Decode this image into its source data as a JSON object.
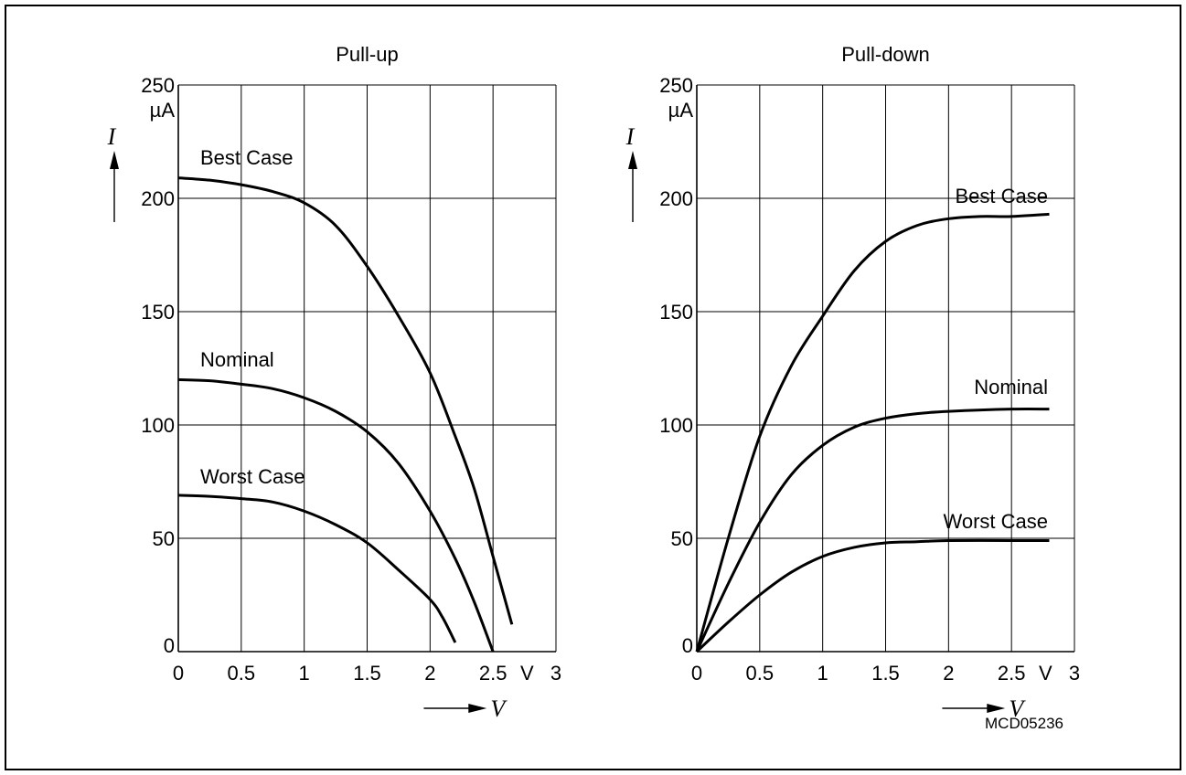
{
  "figure_id": "MCD05236",
  "chart_data": [
    {
      "type": "line",
      "title": "Pull-up",
      "xlabel": "V",
      "ylabel": "I",
      "y_unit": "µA",
      "x_unit": "V",
      "xlim": [
        0,
        3
      ],
      "ylim": [
        0,
        250
      ],
      "x_ticks": [
        "0",
        "0.5",
        "1",
        "1.5",
        "2",
        "2.5",
        "3"
      ],
      "y_ticks": [
        "0",
        "50",
        "100",
        "150",
        "200",
        "250"
      ],
      "grid": true,
      "series": [
        {
          "name": "Best Case",
          "x": [
            0,
            0.25,
            0.5,
            0.75,
            1.0,
            1.25,
            1.5,
            1.75,
            2.0,
            2.2,
            2.35,
            2.5,
            2.65
          ],
          "y": [
            209,
            208,
            206,
            203,
            198,
            188,
            170,
            148,
            123,
            95,
            72,
            42,
            12
          ]
        },
        {
          "name": "Nominal",
          "x": [
            0,
            0.25,
            0.5,
            0.75,
            1.0,
            1.25,
            1.5,
            1.75,
            2.0,
            2.2,
            2.35,
            2.5
          ],
          "y": [
            120,
            119.5,
            118,
            116,
            112,
            106,
            97,
            83,
            62,
            41,
            22,
            0
          ]
        },
        {
          "name": "Worst Case",
          "x": [
            0,
            0.25,
            0.5,
            0.75,
            1.0,
            1.25,
            1.5,
            1.75,
            2.0,
            2.1,
            2.2
          ],
          "y": [
            69,
            68.5,
            67.5,
            66,
            62,
            56,
            48,
            36,
            23,
            15,
            4
          ]
        }
      ]
    },
    {
      "type": "line",
      "title": "Pull-down",
      "xlabel": "V",
      "ylabel": "I",
      "y_unit": "µA",
      "x_unit": "V",
      "xlim": [
        0,
        3
      ],
      "ylim": [
        0,
        250
      ],
      "x_ticks": [
        "0",
        "0.5",
        "1",
        "1.5",
        "2",
        "2.5",
        "3"
      ],
      "y_ticks": [
        "0",
        "50",
        "100",
        "150",
        "200",
        "250"
      ],
      "grid": true,
      "series": [
        {
          "name": "Best Case",
          "x": [
            0,
            0.25,
            0.5,
            0.75,
            1.0,
            1.25,
            1.5,
            1.75,
            2.0,
            2.25,
            2.5,
            2.8
          ],
          "y": [
            0,
            50,
            95,
            126,
            148,
            168,
            181,
            188,
            191,
            192,
            192,
            193
          ]
        },
        {
          "name": "Nominal",
          "x": [
            0,
            0.25,
            0.5,
            0.75,
            1.0,
            1.25,
            1.5,
            1.75,
            2.0,
            2.5,
            2.8
          ],
          "y": [
            0,
            30,
            57,
            78,
            91,
            99,
            103,
            105,
            106,
            107,
            107
          ]
        },
        {
          "name": "Worst Case",
          "x": [
            0,
            0.25,
            0.5,
            0.75,
            1.0,
            1.25,
            1.5,
            1.75,
            2.0,
            2.5,
            2.8
          ],
          "y": [
            0,
            13,
            25,
            35,
            42,
            46,
            48,
            48.5,
            49,
            49,
            49
          ]
        }
      ]
    }
  ]
}
